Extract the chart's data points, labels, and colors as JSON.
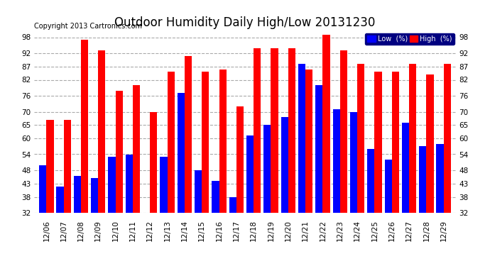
{
  "title": "Outdoor Humidity Daily High/Low 20131230",
  "copyright": "Copyright 2013 Cartronics.com",
  "dates": [
    "12/06",
    "12/07",
    "12/08",
    "12/09",
    "12/10",
    "12/11",
    "12/12",
    "12/13",
    "12/14",
    "12/15",
    "12/16",
    "12/17",
    "12/18",
    "12/19",
    "12/20",
    "12/21",
    "12/22",
    "12/23",
    "12/24",
    "12/25",
    "12/26",
    "12/27",
    "12/28",
    "12/29"
  ],
  "high": [
    67,
    67,
    97,
    93,
    78,
    80,
    70,
    85,
    91,
    85,
    86,
    72,
    94,
    94,
    94,
    86,
    99,
    93,
    88,
    85,
    85,
    88,
    84,
    88
  ],
  "low": [
    50,
    42,
    46,
    45,
    53,
    54,
    32,
    53,
    77,
    48,
    44,
    38,
    61,
    65,
    68,
    88,
    80,
    71,
    70,
    56,
    52,
    66,
    57,
    58
  ],
  "high_color": "#ff0000",
  "low_color": "#0000ff",
  "bg_color": "#ffffff",
  "plot_bg_color": "#ffffff",
  "grid_color": "#aaaaaa",
  "ylim_min": 32,
  "ylim_max": 100,
  "yticks": [
    32,
    38,
    43,
    48,
    54,
    60,
    65,
    70,
    76,
    82,
    87,
    92,
    98
  ],
  "title_fontsize": 12,
  "copyright_fontsize": 7,
  "tick_fontsize": 7.5,
  "legend_low_label": "Low  (%)",
  "legend_high_label": "High  (%)"
}
